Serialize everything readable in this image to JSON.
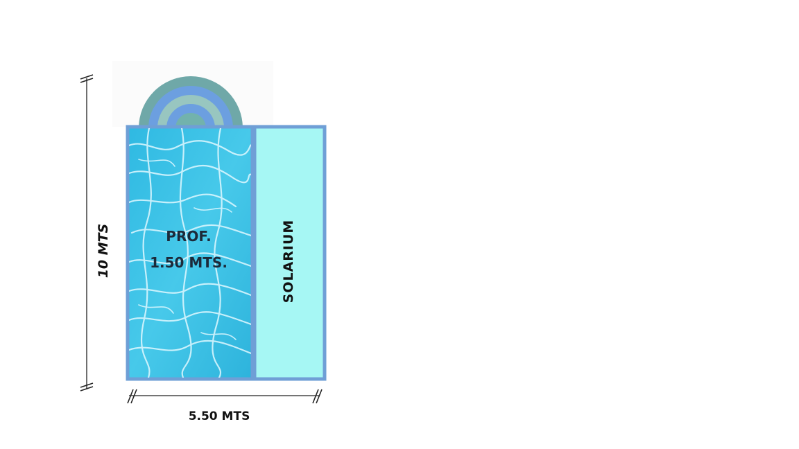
{
  "pool": {
    "depth_label": "PROF.",
    "depth_value": "1.50 MTS.",
    "water_color": "#36c0e0",
    "border_color": "#6f9fd6"
  },
  "solarium": {
    "label": "SOLARIUM",
    "fill_color": "#a6f7f4"
  },
  "steps": {
    "colors": [
      "#6fa8a8",
      "#6c9fe0",
      "#98c6c0",
      "#6c9fe0",
      "#72b2ac"
    ]
  },
  "dimensions": {
    "height_label": "10 MTS",
    "width_label": "5.50 MTS"
  }
}
